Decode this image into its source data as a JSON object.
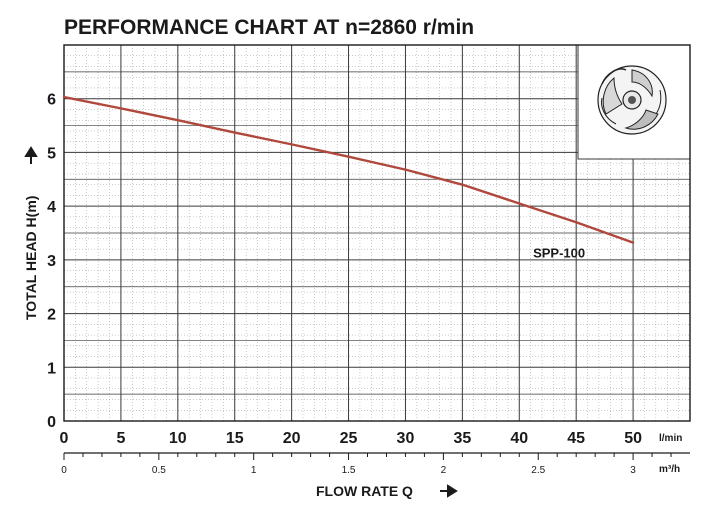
{
  "chart_data": {
    "type": "line",
    "title": "PERFORMANCE CHART AT n=2860 r/min",
    "xlabel": "FLOW RATE Q",
    "ylabel": "TOTAL HEAD H(m)",
    "x_unit_primary": "l/min",
    "x_unit_secondary": "m³/h",
    "xlim": [
      0,
      50
    ],
    "ylim": [
      0,
      7
    ],
    "x_ticks": [
      "0",
      "5",
      "10",
      "15",
      "20",
      "25",
      "30",
      "35",
      "40",
      "45",
      "50"
    ],
    "x_ticks_secondary": [
      "0",
      "0.5",
      "1",
      "1.5",
      "2",
      "2.5",
      "3"
    ],
    "y_ticks": [
      "0",
      "1",
      "2",
      "3",
      "4",
      "5",
      "6"
    ],
    "grid": true,
    "series": [
      {
        "name": "SPP-100",
        "color": "#b0483c",
        "x": [
          0,
          5,
          10,
          15,
          20,
          25,
          30,
          35,
          40,
          45,
          50
        ],
        "y": [
          6.03,
          5.82,
          5.6,
          5.37,
          5.15,
          4.92,
          4.68,
          4.4,
          4.05,
          3.7,
          3.32
        ]
      }
    ]
  },
  "colors": {
    "grid_major": "#3a3a3a",
    "grid_minor": "#9a9a9a",
    "background": "#ffffff"
  },
  "inset": {
    "icon": "impeller-icon"
  }
}
